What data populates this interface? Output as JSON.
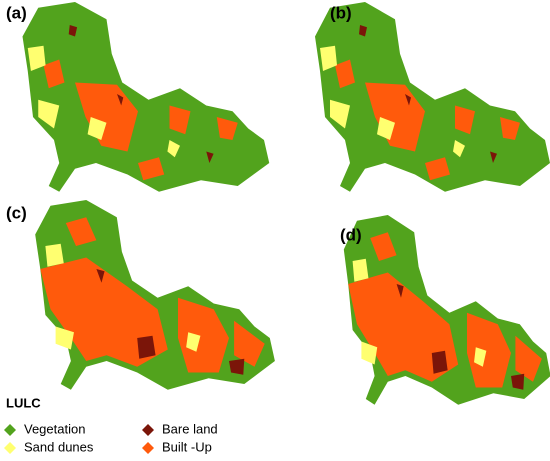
{
  "panels": [
    {
      "label": "(a)"
    },
    {
      "label": "(b)"
    },
    {
      "label": "(c)"
    },
    {
      "label": "(d)"
    }
  ],
  "legend": {
    "title": "LULC",
    "items": [
      {
        "name": "Vegetation",
        "color": "#52a31d"
      },
      {
        "name": "Bare land",
        "color": "#7b1509"
      },
      {
        "name": "Sand dunes",
        "color": "#ffff70"
      },
      {
        "name": "Built -Up",
        "color": "#ff5a0c"
      }
    ]
  }
}
